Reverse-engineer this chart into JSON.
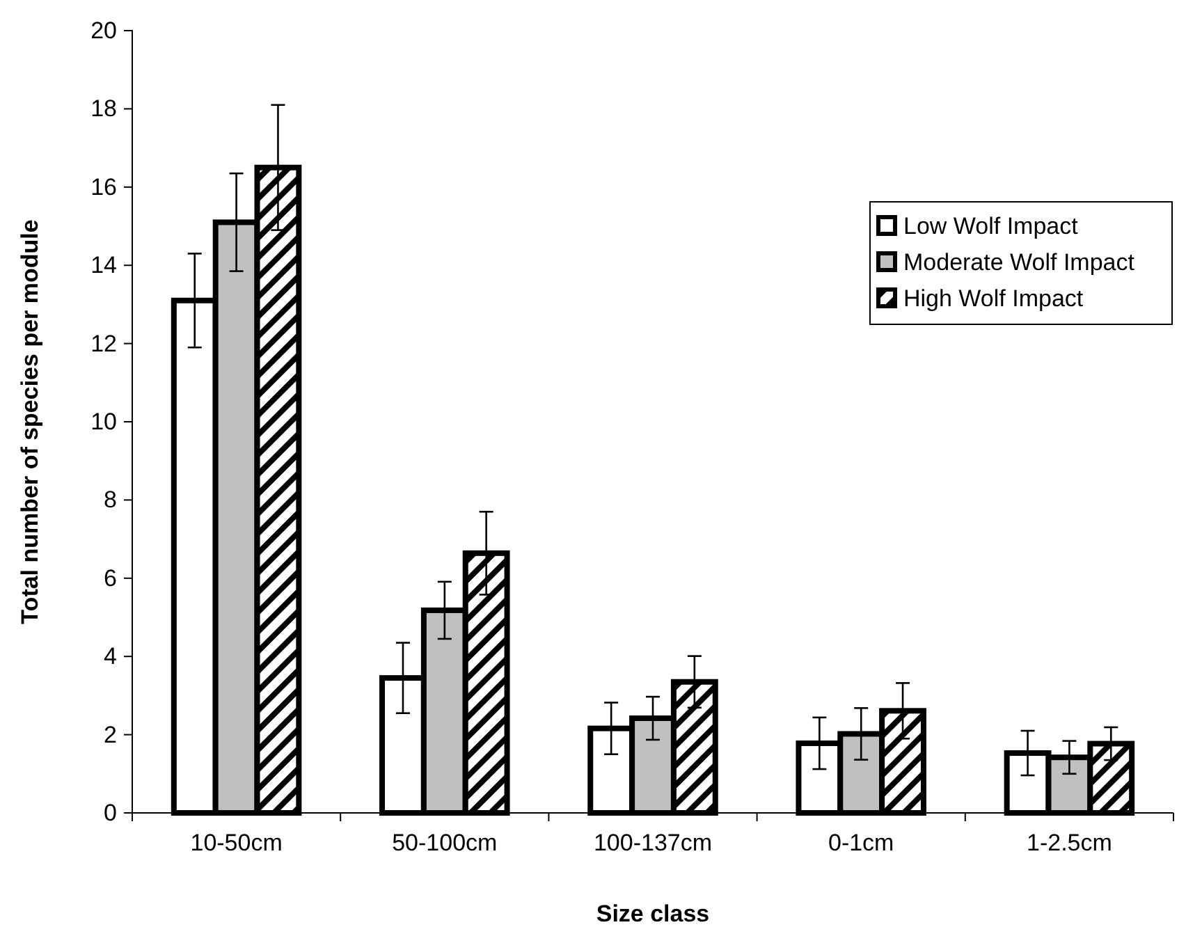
{
  "chart_data": {
    "type": "bar",
    "xlabel": "Size class",
    "ylabel": "Total number of species per module",
    "categories": [
      "10-50cm",
      "50-100cm",
      "100-137cm",
      "0-1cm",
      "1-2.5cm"
    ],
    "series": [
      {
        "name": "Low Wolf Impact",
        "color": "#ffffff",
        "values": [
          13.1,
          3.45,
          2.16,
          1.78,
          1.53
        ],
        "errors": [
          1.2,
          0.9,
          0.66,
          0.66,
          0.57
        ]
      },
      {
        "name": "Moderate Wolf Impact",
        "color": "#c0c0c0",
        "values": [
          15.1,
          5.18,
          2.42,
          2.02,
          1.42
        ],
        "errors": [
          1.25,
          0.73,
          0.55,
          0.66,
          0.42
        ]
      },
      {
        "name": "High Wolf Impact",
        "color": "#000000",
        "values": [
          16.5,
          6.64,
          3.35,
          2.61,
          1.77
        ],
        "errors": [
          1.6,
          1.06,
          0.66,
          0.71,
          0.42
        ]
      }
    ],
    "ylim": [
      0,
      20
    ],
    "yticks": [
      0,
      2,
      4,
      6,
      8,
      10,
      12,
      14,
      16,
      18,
      20
    ],
    "grid": false,
    "legend": "top right"
  }
}
